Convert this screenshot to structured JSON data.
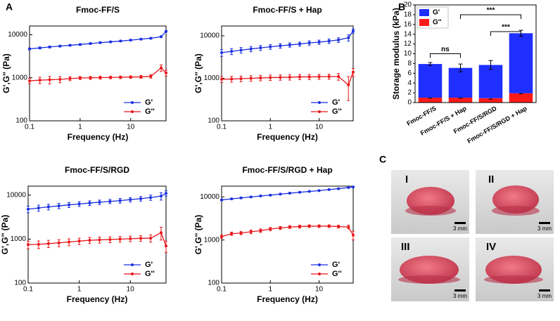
{
  "panel_labels": [
    "A",
    "B",
    "C"
  ],
  "chart_data": [
    {
      "type": "line",
      "title": "Fmoc-FF/S",
      "xlabel": "Frequency (Hz)",
      "ylabel": "G',G'' (Pa)",
      "log_x": true,
      "log_y": true,
      "x": [
        0.1,
        0.16,
        0.25,
        0.4,
        0.63,
        1,
        1.6,
        2.5,
        4,
        6.3,
        10,
        16,
        25,
        40,
        50
      ],
      "xlim": [
        0.1,
        50
      ],
      "ylim": [
        100,
        16000
      ],
      "xticks": [
        0.1,
        1,
        10
      ],
      "yticks": [
        100,
        1000,
        10000
      ],
      "legend": "lower right",
      "series": [
        {
          "name": "G'",
          "color": "#1a2fe0",
          "values": [
            4700,
            4950,
            5200,
            5450,
            5700,
            5950,
            6250,
            6550,
            6850,
            7150,
            7500,
            7900,
            8300,
            9000,
            12000
          ],
          "errors": [
            250,
            250,
            250,
            250,
            250,
            250,
            250,
            250,
            250,
            250,
            250,
            300,
            300,
            400,
            500
          ]
        },
        {
          "name": "G''",
          "color": "#e8161a",
          "values": [
            850,
            880,
            900,
            920,
            960,
            990,
            1000,
            1010,
            1020,
            1030,
            1040,
            1050,
            1080,
            1700,
            1300
          ],
          "errors": [
            120,
            150,
            180,
            150,
            100,
            80,
            80,
            80,
            70,
            70,
            70,
            80,
            100,
            300,
            200
          ]
        }
      ]
    },
    {
      "type": "line",
      "title": "Fmoc-FF/S + Hap",
      "xlabel": "Frequency (Hz)",
      "ylabel": "G',G'' (Pa)",
      "log_x": true,
      "log_y": true,
      "x": [
        0.1,
        0.16,
        0.25,
        0.4,
        0.63,
        1,
        1.6,
        2.5,
        4,
        6.3,
        10,
        16,
        25,
        40,
        50
      ],
      "xlim": [
        0.1,
        50
      ],
      "ylim": [
        100,
        17000
      ],
      "xticks": [
        0.1,
        1,
        10
      ],
      "yticks": [
        100,
        1000,
        10000
      ],
      "legend": "lower right",
      "series": [
        {
          "name": "G'",
          "color": "#1a2fe0",
          "values": [
            4000,
            4300,
            4600,
            4900,
            5200,
            5500,
            5800,
            6100,
            6400,
            6800,
            7100,
            7500,
            8000,
            9000,
            13000
          ],
          "errors": [
            700,
            700,
            700,
            700,
            700,
            700,
            700,
            700,
            700,
            800,
            800,
            900,
            1000,
            1500,
            1500
          ]
        },
        {
          "name": "G''",
          "color": "#e8161a",
          "values": [
            950,
            960,
            980,
            1000,
            1020,
            1040,
            1050,
            1060,
            1080,
            1080,
            1090,
            1100,
            1100,
            700,
            1400
          ],
          "errors": [
            150,
            150,
            150,
            150,
            150,
            150,
            150,
            150,
            150,
            150,
            150,
            150,
            200,
            400,
            300
          ]
        }
      ]
    },
    {
      "type": "line",
      "title": "Fmoc-FF/S/RGD",
      "xlabel": "Frequency (Hz)",
      "ylabel": "G',G'' (Pa)",
      "log_x": true,
      "log_y": true,
      "x": [
        0.1,
        0.16,
        0.25,
        0.4,
        0.63,
        1,
        1.6,
        2.5,
        4,
        6.3,
        10,
        16,
        25,
        40,
        50
      ],
      "xlim": [
        0.1,
        50
      ],
      "ylim": [
        100,
        16000
      ],
      "xticks": [
        0.1,
        1,
        10
      ],
      "yticks": [
        100,
        1000,
        10000
      ],
      "legend": "lower right",
      "series": [
        {
          "name": "G'",
          "color": "#1a2fe0",
          "values": [
            4800,
            5100,
            5400,
            5700,
            6000,
            6300,
            6600,
            6900,
            7200,
            7500,
            7900,
            8300,
            8800,
            9500,
            11000
          ],
          "errors": [
            800,
            800,
            800,
            800,
            800,
            800,
            800,
            800,
            800,
            900,
            900,
            1000,
            1200,
            1800,
            1500
          ]
        },
        {
          "name": "G''",
          "color": "#e8161a",
          "values": [
            750,
            760,
            790,
            820,
            860,
            900,
            940,
            960,
            980,
            1000,
            1020,
            1040,
            1050,
            1400,
            700
          ],
          "errors": [
            150,
            150,
            150,
            150,
            150,
            150,
            150,
            150,
            150,
            150,
            150,
            150,
            200,
            450,
            200
          ]
        }
      ]
    },
    {
      "type": "line",
      "title": "Fmoc-FF/S/RGD + Hap",
      "xlabel": "Frequency (Hz)",
      "ylabel": "G',G'' (Pa)",
      "log_x": true,
      "log_y": true,
      "x": [
        0.1,
        0.16,
        0.25,
        0.4,
        0.63,
        1,
        1.6,
        2.5,
        4,
        6.3,
        10,
        16,
        25,
        40,
        50
      ],
      "xlim": [
        0.1,
        50
      ],
      "ylim": [
        100,
        17800
      ],
      "xticks": [
        0.1,
        1,
        10
      ],
      "yticks": [
        100,
        1000,
        10000
      ],
      "legend": "lower right",
      "series": [
        {
          "name": "G'",
          "color": "#1a2fe0",
          "values": [
            8500,
            9000,
            9500,
            10000,
            10500,
            11000,
            11600,
            12200,
            12800,
            13400,
            14000,
            14800,
            15500,
            16500,
            17000
          ],
          "errors": [
            300,
            300,
            300,
            300,
            300,
            300,
            300,
            300,
            300,
            300,
            300,
            300,
            300,
            400,
            400
          ]
        },
        {
          "name": "G''",
          "color": "#e8161a",
          "values": [
            1200,
            1400,
            1450,
            1550,
            1650,
            1800,
            1900,
            2000,
            2050,
            2100,
            2100,
            2100,
            2050,
            2000,
            1300
          ],
          "errors": [
            100,
            120,
            120,
            150,
            150,
            150,
            150,
            150,
            150,
            150,
            150,
            150,
            150,
            200,
            300
          ]
        }
      ]
    },
    {
      "type": "bar",
      "stacked": true,
      "ylabel": "Storage modulus (kPa)",
      "categories": [
        "Fmoc-FF/S",
        "Fmoc-FF/S + Hap",
        "Fmoc-FF/S/RGD",
        "Fmoc-FF/S/RGD + Hap"
      ],
      "ylim": [
        0,
        20
      ],
      "yticks": [
        0,
        2,
        4,
        6,
        8,
        10,
        12,
        14,
        16,
        18,
        20
      ],
      "legend": "upper left",
      "series": [
        {
          "name": "G''",
          "color": "#ff1a1a",
          "values": [
            1.0,
            1.0,
            0.9,
            1.9
          ],
          "errors": [
            0.1,
            0.1,
            0.2,
            0.1
          ]
        },
        {
          "name": "G'",
          "color": "#1f2fff",
          "values": [
            6.9,
            6.1,
            6.8,
            12.3
          ],
          "errors": [
            0.3,
            0.8,
            0.9,
            0.6
          ]
        }
      ],
      "annotations": [
        {
          "text": "ns",
          "between": [
            0,
            1
          ]
        },
        {
          "text": "***",
          "between": [
            1,
            3
          ]
        },
        {
          "text": "***",
          "between": [
            2,
            3
          ]
        }
      ]
    }
  ],
  "photos": {
    "labels": [
      "I",
      "II",
      "III",
      "IV"
    ],
    "scale_bar": "3 mm"
  }
}
